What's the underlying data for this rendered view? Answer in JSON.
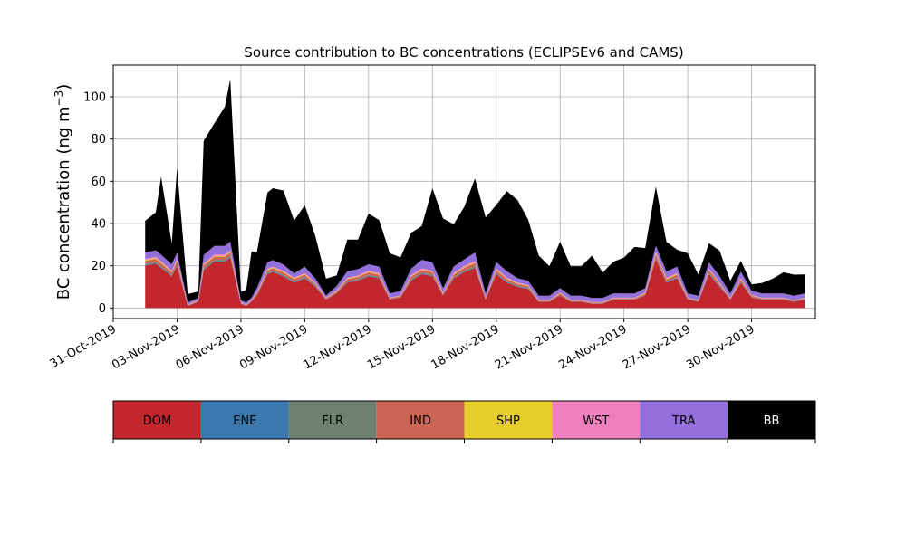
{
  "chart_data": {
    "type": "area",
    "title": "Source contribution to BC concentrations (ECLIPSEv6 and CAMS)",
    "ylabel_text": "BC concentration (ng m",
    "ylabel_sup": "−3",
    "ylabel_close": ")",
    "xlim": [
      "2019-10-31",
      "2019-12-03"
    ],
    "ylim": [
      -5,
      115
    ],
    "y_ticks": [
      0,
      20,
      40,
      60,
      80,
      100
    ],
    "x_ticks": [
      "2019-10-31",
      "2019-11-03",
      "2019-11-06",
      "2019-11-09",
      "2019-11-12",
      "2019-11-15",
      "2019-11-18",
      "2019-11-21",
      "2019-11-24",
      "2019-11-27",
      "2019-11-30"
    ],
    "x_tick_labels": [
      "31-Oct-2019",
      "03-Nov-2019",
      "06-Nov-2019",
      "09-Nov-2019",
      "12-Nov-2019",
      "15-Nov-2019",
      "18-Nov-2019",
      "21-Nov-2019",
      "24-Nov-2019",
      "27-Nov-2019",
      "30-Nov-2019"
    ],
    "grid": true,
    "stacked": true,
    "x": [
      "2019-11-01 12:00",
      "2019-11-02 00:00",
      "2019-11-02 06:00",
      "2019-11-02 18:00",
      "2019-11-03 00:00",
      "2019-11-03 12:00",
      "2019-11-04 00:00",
      "2019-11-04 06:00",
      "2019-11-04 18:00",
      "2019-11-05 06:00",
      "2019-11-05 12:00",
      "2019-11-06 00:00",
      "2019-11-06 06:00",
      "2019-11-06 12:00",
      "2019-11-06 18:00",
      "2019-11-07 06:00",
      "2019-11-07 12:00",
      "2019-11-08 00:00",
      "2019-11-08 12:00",
      "2019-11-09 00:00",
      "2019-11-09 12:00",
      "2019-11-10 00:00",
      "2019-11-10 12:00",
      "2019-11-11 00:00",
      "2019-11-11 12:00",
      "2019-11-12 00:00",
      "2019-11-12 12:00",
      "2019-11-13 00:00",
      "2019-11-13 12:00",
      "2019-11-14 00:00",
      "2019-11-14 12:00",
      "2019-11-15 00:00",
      "2019-11-15 12:00",
      "2019-11-16 00:00",
      "2019-11-16 12:00",
      "2019-11-17 00:00",
      "2019-11-17 12:00",
      "2019-11-18 00:00",
      "2019-11-18 12:00",
      "2019-11-19 00:00",
      "2019-11-19 12:00",
      "2019-11-20 00:00",
      "2019-11-20 12:00",
      "2019-11-21 00:00",
      "2019-11-21 12:00",
      "2019-11-22 00:00",
      "2019-11-22 12:00",
      "2019-11-23 00:00",
      "2019-11-23 12:00",
      "2019-11-24 00:00",
      "2019-11-24 12:00",
      "2019-11-25 00:00",
      "2019-11-25 12:00",
      "2019-11-26 00:00",
      "2019-11-26 12:00",
      "2019-11-27 00:00",
      "2019-11-27 12:00",
      "2019-11-28 00:00",
      "2019-11-28 12:00",
      "2019-11-29 00:00",
      "2019-11-29 12:00",
      "2019-11-30 00:00",
      "2019-11-30 12:00",
      "2019-12-01 00:00",
      "2019-12-01 12:00",
      "2019-12-02 00:00",
      "2019-12-02 12:00"
    ],
    "series": [
      {
        "name": "DOM",
        "color": "#c1272d",
        "values": [
          20,
          21,
          19,
          15,
          20,
          1,
          3,
          18,
          22,
          22,
          24,
          2,
          1,
          3,
          6,
          16,
          17,
          15,
          12,
          14,
          10,
          4,
          7,
          12,
          13,
          15,
          14,
          4,
          5,
          13,
          16,
          15,
          6,
          14,
          17,
          19,
          4,
          16,
          12,
          10,
          9,
          3,
          3,
          6,
          3,
          3,
          2,
          2,
          4,
          4,
          4,
          6,
          23,
          12,
          14,
          4,
          3,
          16,
          10,
          4,
          12,
          5,
          4,
          4,
          4,
          3,
          4
        ]
      },
      {
        "name": "ENE",
        "color": "#3a78b0",
        "values": [
          0.3,
          0.3,
          0.3,
          0.3,
          0.3,
          0.1,
          0.1,
          0.3,
          0.3,
          0.3,
          0.3,
          0.1,
          0.1,
          0.1,
          0.1,
          0.3,
          0.3,
          0.3,
          0.3,
          0.3,
          0.3,
          0.1,
          0.1,
          0.3,
          0.3,
          0.3,
          0.3,
          0.1,
          0.1,
          0.3,
          0.3,
          0.3,
          0.1,
          0.3,
          0.3,
          0.3,
          0.1,
          0.3,
          0.3,
          0.3,
          0.3,
          0.1,
          0.1,
          0.1,
          0.1,
          0.1,
          0.1,
          0.1,
          0.1,
          0.1,
          0.1,
          0.1,
          0.3,
          0.3,
          0.3,
          0.1,
          0.1,
          0.3,
          0.3,
          0.1,
          0.3,
          0.1,
          0.1,
          0.1,
          0.1,
          0.1,
          0.1
        ]
      },
      {
        "name": "FLR",
        "color": "#6e8070",
        "values": [
          0.5,
          0.5,
          0.5,
          0.4,
          0.5,
          0.1,
          0.1,
          0.5,
          0.5,
          0.5,
          0.5,
          0.1,
          0.1,
          0.1,
          0.2,
          0.4,
          0.4,
          0.4,
          0.4,
          0.4,
          0.3,
          0.1,
          0.2,
          0.4,
          0.4,
          0.4,
          0.4,
          0.1,
          0.1,
          0.4,
          0.4,
          0.4,
          0.2,
          0.4,
          0.4,
          0.5,
          0.1,
          0.4,
          0.4,
          0.3,
          0.3,
          0.1,
          0.1,
          0.2,
          0.1,
          0.1,
          0.1,
          0.1,
          0.1,
          0.1,
          0.1,
          0.2,
          0.5,
          0.3,
          0.4,
          0.1,
          0.1,
          0.4,
          0.3,
          0.1,
          0.3,
          0.2,
          0.1,
          0.1,
          0.1,
          0.1,
          0.1
        ]
      },
      {
        "name": "IND",
        "color": "#cd6555",
        "values": [
          1.5,
          1.5,
          1.4,
          1.2,
          1.5,
          0.2,
          0.3,
          1.3,
          1.5,
          1.5,
          1.6,
          0.3,
          0.2,
          0.4,
          0.6,
          1.2,
          1.2,
          1.1,
          1.0,
          1.1,
          0.8,
          0.4,
          0.6,
          1.0,
          1.0,
          1.2,
          1.1,
          0.4,
          0.5,
          1.1,
          1.3,
          1.2,
          0.6,
          1.2,
          1.4,
          1.5,
          0.4,
          1.3,
          1.0,
          0.9,
          0.8,
          0.3,
          0.3,
          0.6,
          0.3,
          0.3,
          0.3,
          0.3,
          0.4,
          0.4,
          0.4,
          0.6,
          1.6,
          1.0,
          1.1,
          0.4,
          0.3,
          1.2,
          0.9,
          0.4,
          1.0,
          0.5,
          0.4,
          0.4,
          0.4,
          0.3,
          0.4
        ]
      },
      {
        "name": "SHP",
        "color": "#e8cd2e",
        "values": [
          0.4,
          0.4,
          0.4,
          0.3,
          0.4,
          0.1,
          0.1,
          0.4,
          0.4,
          0.4,
          0.4,
          0.1,
          0.1,
          0.1,
          0.2,
          0.3,
          0.3,
          0.3,
          0.3,
          0.3,
          0.2,
          0.1,
          0.2,
          0.3,
          0.3,
          0.3,
          0.3,
          0.1,
          0.1,
          0.3,
          0.3,
          0.3,
          0.2,
          0.3,
          0.3,
          0.4,
          0.1,
          0.3,
          0.3,
          0.2,
          0.2,
          0.1,
          0.1,
          0.2,
          0.1,
          0.1,
          0.1,
          0.1,
          0.1,
          0.1,
          0.1,
          0.2,
          0.4,
          0.3,
          0.3,
          0.1,
          0.1,
          0.3,
          0.2,
          0.1,
          0.3,
          0.2,
          0.1,
          0.1,
          0.1,
          0.1,
          0.1
        ]
      },
      {
        "name": "WST",
        "color": "#f07fbf",
        "values": [
          0.6,
          0.6,
          0.6,
          0.5,
          0.6,
          0.1,
          0.2,
          0.6,
          0.7,
          0.7,
          0.7,
          0.1,
          0.1,
          0.2,
          0.3,
          0.5,
          0.5,
          0.5,
          0.4,
          0.5,
          0.4,
          0.2,
          0.3,
          0.4,
          0.4,
          0.5,
          0.5,
          0.2,
          0.2,
          0.5,
          0.5,
          0.5,
          0.3,
          0.5,
          0.6,
          0.6,
          0.2,
          0.5,
          0.4,
          0.4,
          0.3,
          0.2,
          0.2,
          0.3,
          0.2,
          0.2,
          0.2,
          0.2,
          0.2,
          0.2,
          0.2,
          0.3,
          0.7,
          0.4,
          0.5,
          0.2,
          0.2,
          0.5,
          0.4,
          0.2,
          0.4,
          0.2,
          0.2,
          0.2,
          0.2,
          0.2,
          0.2
        ]
      },
      {
        "name": "TRA",
        "color": "#9370db",
        "values": [
          3,
          3,
          3,
          3,
          3,
          1,
          1,
          4,
          4,
          4,
          4,
          1,
          1,
          1,
          2,
          3,
          3,
          3,
          2,
          3,
          2,
          1,
          2,
          3,
          3,
          3,
          3,
          2,
          2,
          3,
          4,
          4,
          2,
          3,
          3,
          4,
          2,
          3,
          3,
          2,
          2,
          2,
          2,
          2,
          2,
          2,
          2,
          2,
          2,
          2,
          2,
          2,
          3,
          3,
          3,
          2,
          2,
          3,
          3,
          2,
          3,
          2,
          2,
          2,
          2,
          2,
          2
        ]
      },
      {
        "name": "BB",
        "color": "#000000",
        "values": [
          15,
          18,
          37,
          10,
          40,
          4,
          3,
          54,
          58,
          66,
          77,
          4,
          6,
          22,
          17,
          33,
          34,
          35,
          25,
          29,
          20,
          8,
          5,
          15,
          14,
          24,
          22,
          19,
          16,
          17,
          16,
          35,
          33,
          20,
          25,
          35,
          36,
          27,
          38,
          37,
          29,
          19,
          14,
          22,
          14,
          14,
          20,
          12,
          15,
          17,
          22,
          19,
          28,
          14,
          8,
          19,
          10,
          9,
          12,
          6,
          5,
          3,
          5,
          7,
          10,
          10,
          9
        ]
      }
    ],
    "legend": [
      "DOM",
      "ENE",
      "FLR",
      "IND",
      "SHP",
      "WST",
      "TRA",
      "BB"
    ]
  }
}
